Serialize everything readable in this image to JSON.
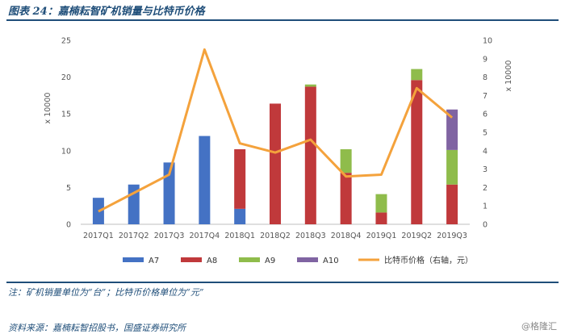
{
  "header": {
    "title": "图表 24：嘉楠耘智矿机销量与比特币价格"
  },
  "footer": {
    "note": "注：矿机销量单位为“台”；比特币价格单位为“元”",
    "source": "资料来源：嘉楠耘智招股书，国盛证券研究所",
    "watermark": "@格隆汇"
  },
  "chart_data": {
    "type": "bar",
    "stacked": true,
    "categories": [
      "2017Q1",
      "2017Q2",
      "2017Q3",
      "2017Q4",
      "2018Q1",
      "2018Q2",
      "2018Q3",
      "2018Q4",
      "2019Q1",
      "2019Q2",
      "2019Q3"
    ],
    "series": [
      {
        "name": "A7",
        "color": "#4472c4",
        "values": [
          3.6,
          5.4,
          8.4,
          12.0,
          2.1,
          0,
          0,
          0,
          0,
          0,
          0
        ]
      },
      {
        "name": "A8",
        "color": "#c0393b",
        "values": [
          0,
          0,
          0,
          0,
          8.1,
          16.4,
          18.7,
          7.0,
          1.6,
          19.6,
          5.4
        ]
      },
      {
        "name": "A9",
        "color": "#8fbc4b",
        "values": [
          0,
          0,
          0,
          0,
          0,
          0,
          0.3,
          3.2,
          2.5,
          1.5,
          4.7
        ]
      },
      {
        "name": "A10",
        "color": "#8064a2",
        "values": [
          0,
          0,
          0,
          0,
          0,
          0,
          0,
          0,
          0,
          0,
          5.5
        ]
      }
    ],
    "line": {
      "name": "比特币价格（右轴，元）",
      "color": "#f4a23c",
      "axis": "right",
      "values": [
        0.7,
        1.7,
        2.7,
        9.5,
        4.4,
        3.9,
        4.6,
        2.6,
        2.7,
        7.4,
        5.8
      ]
    },
    "yleft": {
      "label": "x 10000",
      "ylim": [
        0,
        25
      ],
      "ticks": [
        "0",
        "5",
        "10",
        "15",
        "20",
        "25"
      ]
    },
    "yright": {
      "label": "x 10000",
      "ylim": [
        0,
        10
      ],
      "ticks": [
        "0",
        "1",
        "2",
        "3",
        "4",
        "5",
        "6",
        "7",
        "8",
        "9",
        "10"
      ]
    },
    "legend": "bottom",
    "grid": false
  }
}
